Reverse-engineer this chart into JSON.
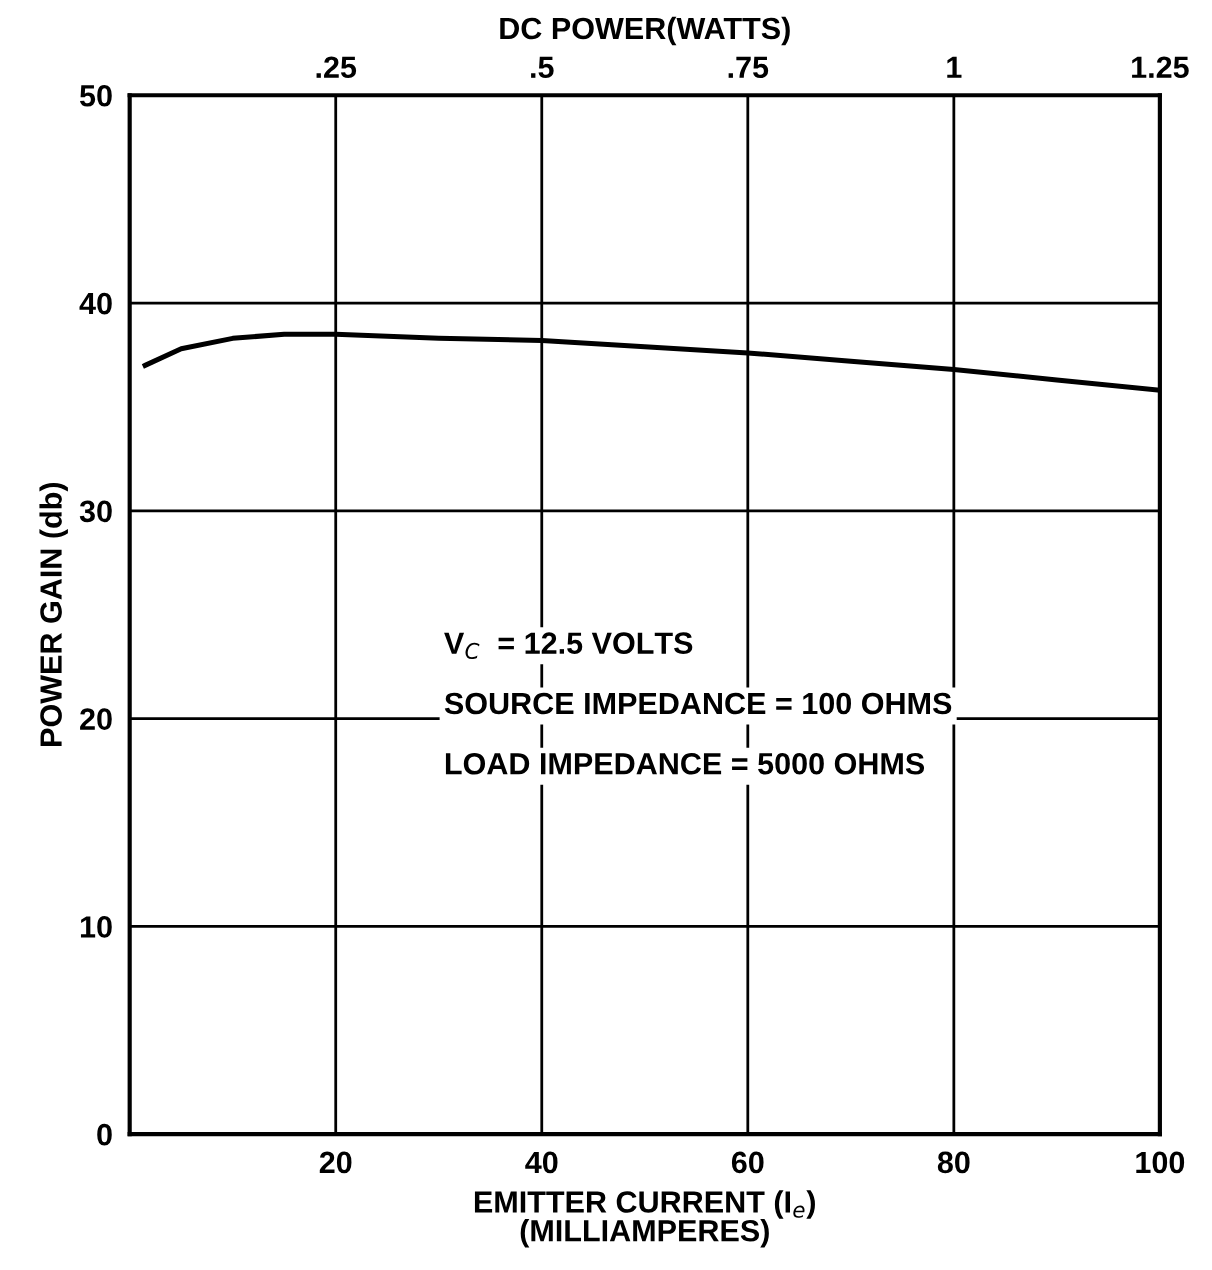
{
  "chart_data": {
    "type": "line",
    "xlabel": "EMITTER CURRENT (I$_{e}$)\n(MILLIAMPERES)",
    "ylabel": "POWER GAIN (db)",
    "x2label": "DC POWER(WATTS)",
    "x": [
      1.5,
      5,
      10,
      15,
      20,
      30,
      40,
      50,
      60,
      70,
      80,
      90,
      100
    ],
    "series": [
      {
        "color": "#000000",
        "values": [
          37.0,
          37.8,
          38.3,
          38.5,
          38.5,
          38.3,
          38.2,
          37.9,
          37.6,
          37.2,
          36.8,
          36.3,
          35.8
        ]
      }
    ],
    "xlim": [
      0,
      100
    ],
    "xticks": [
      20,
      40,
      60,
      80,
      100
    ],
    "x2lim": [
      0,
      1.25
    ],
    "x2ticks": [
      {
        "value": 0.25,
        "label": ".25"
      },
      {
        "value": 0.5,
        "label": ".5"
      },
      {
        "value": 0.75,
        "label": ".75"
      },
      1,
      1.25
    ],
    "ylim": [
      0,
      50
    ],
    "yticks": [
      0,
      10,
      20,
      30,
      40,
      50
    ],
    "grid": true,
    "marker": "none",
    "line_style": "solid",
    "annotations": [
      "V$_{C}$  = 12.5 VOLTS",
      "SOURCE IMPEDANCE = 100 OHMS",
      "LOAD IMPEDANCE = 5000 OHMS"
    ]
  }
}
